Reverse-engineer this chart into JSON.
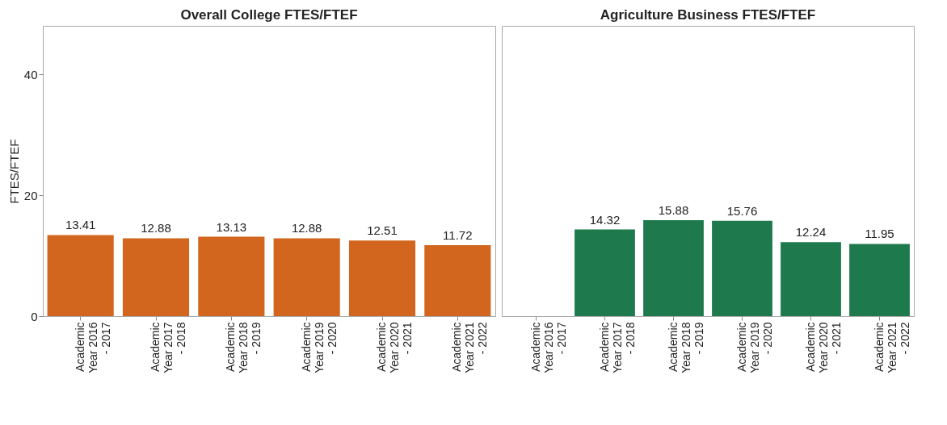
{
  "chart_data": [
    {
      "type": "bar",
      "title": "Overall College FTES/FTEF",
      "ylabel": "FTES/FTEF",
      "categories": [
        "Academic Year 2016 - 2017",
        "Academic Year 2017 - 2018",
        "Academic Year 2018 - 2019",
        "Academic Year 2019 - 2020",
        "Academic Year 2020 - 2021",
        "Academic Year 2021 - 2022"
      ],
      "values": [
        13.41,
        12.88,
        13.13,
        12.88,
        12.51,
        11.72
      ],
      "color": "#d2661e",
      "ylim": [
        0,
        48
      ],
      "yticks": [
        0,
        20,
        40
      ],
      "grid": false,
      "data_labels": true
    },
    {
      "type": "bar",
      "title": "Agriculture Business FTES/FTEF",
      "categories": [
        "Academic Year 2016 - 2017",
        "Academic Year 2017 - 2018",
        "Academic Year 2018 - 2019",
        "Academic Year 2019 - 2020",
        "Academic Year 2020 - 2021",
        "Academic Year 2021 - 2022"
      ],
      "values": [
        null,
        14.32,
        15.88,
        15.76,
        12.24,
        11.95
      ],
      "color": "#1e7a4c",
      "ylim": [
        0,
        48
      ],
      "yticks": [
        0,
        20,
        40
      ],
      "grid": false,
      "data_labels": true,
      "tick_labels": "x"
    }
  ]
}
